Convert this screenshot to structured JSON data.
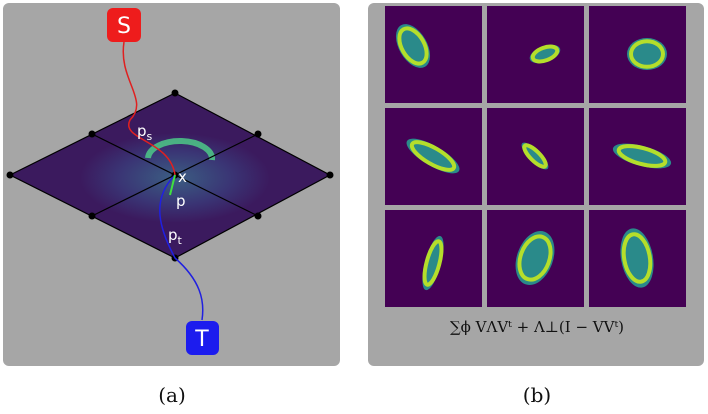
{
  "panel_a": {
    "source": "S",
    "target": "T",
    "p_s": {
      "base": "p",
      "sub": "s"
    },
    "point": "x",
    "p": "p",
    "p_t": {
      "base": "p",
      "sub": "t"
    },
    "caption": "(a)"
  },
  "panel_b": {
    "formula": "∑ϕ VΛVᵗ + Λ⊥(I − VVᵗ)",
    "caption": "(b)"
  }
}
